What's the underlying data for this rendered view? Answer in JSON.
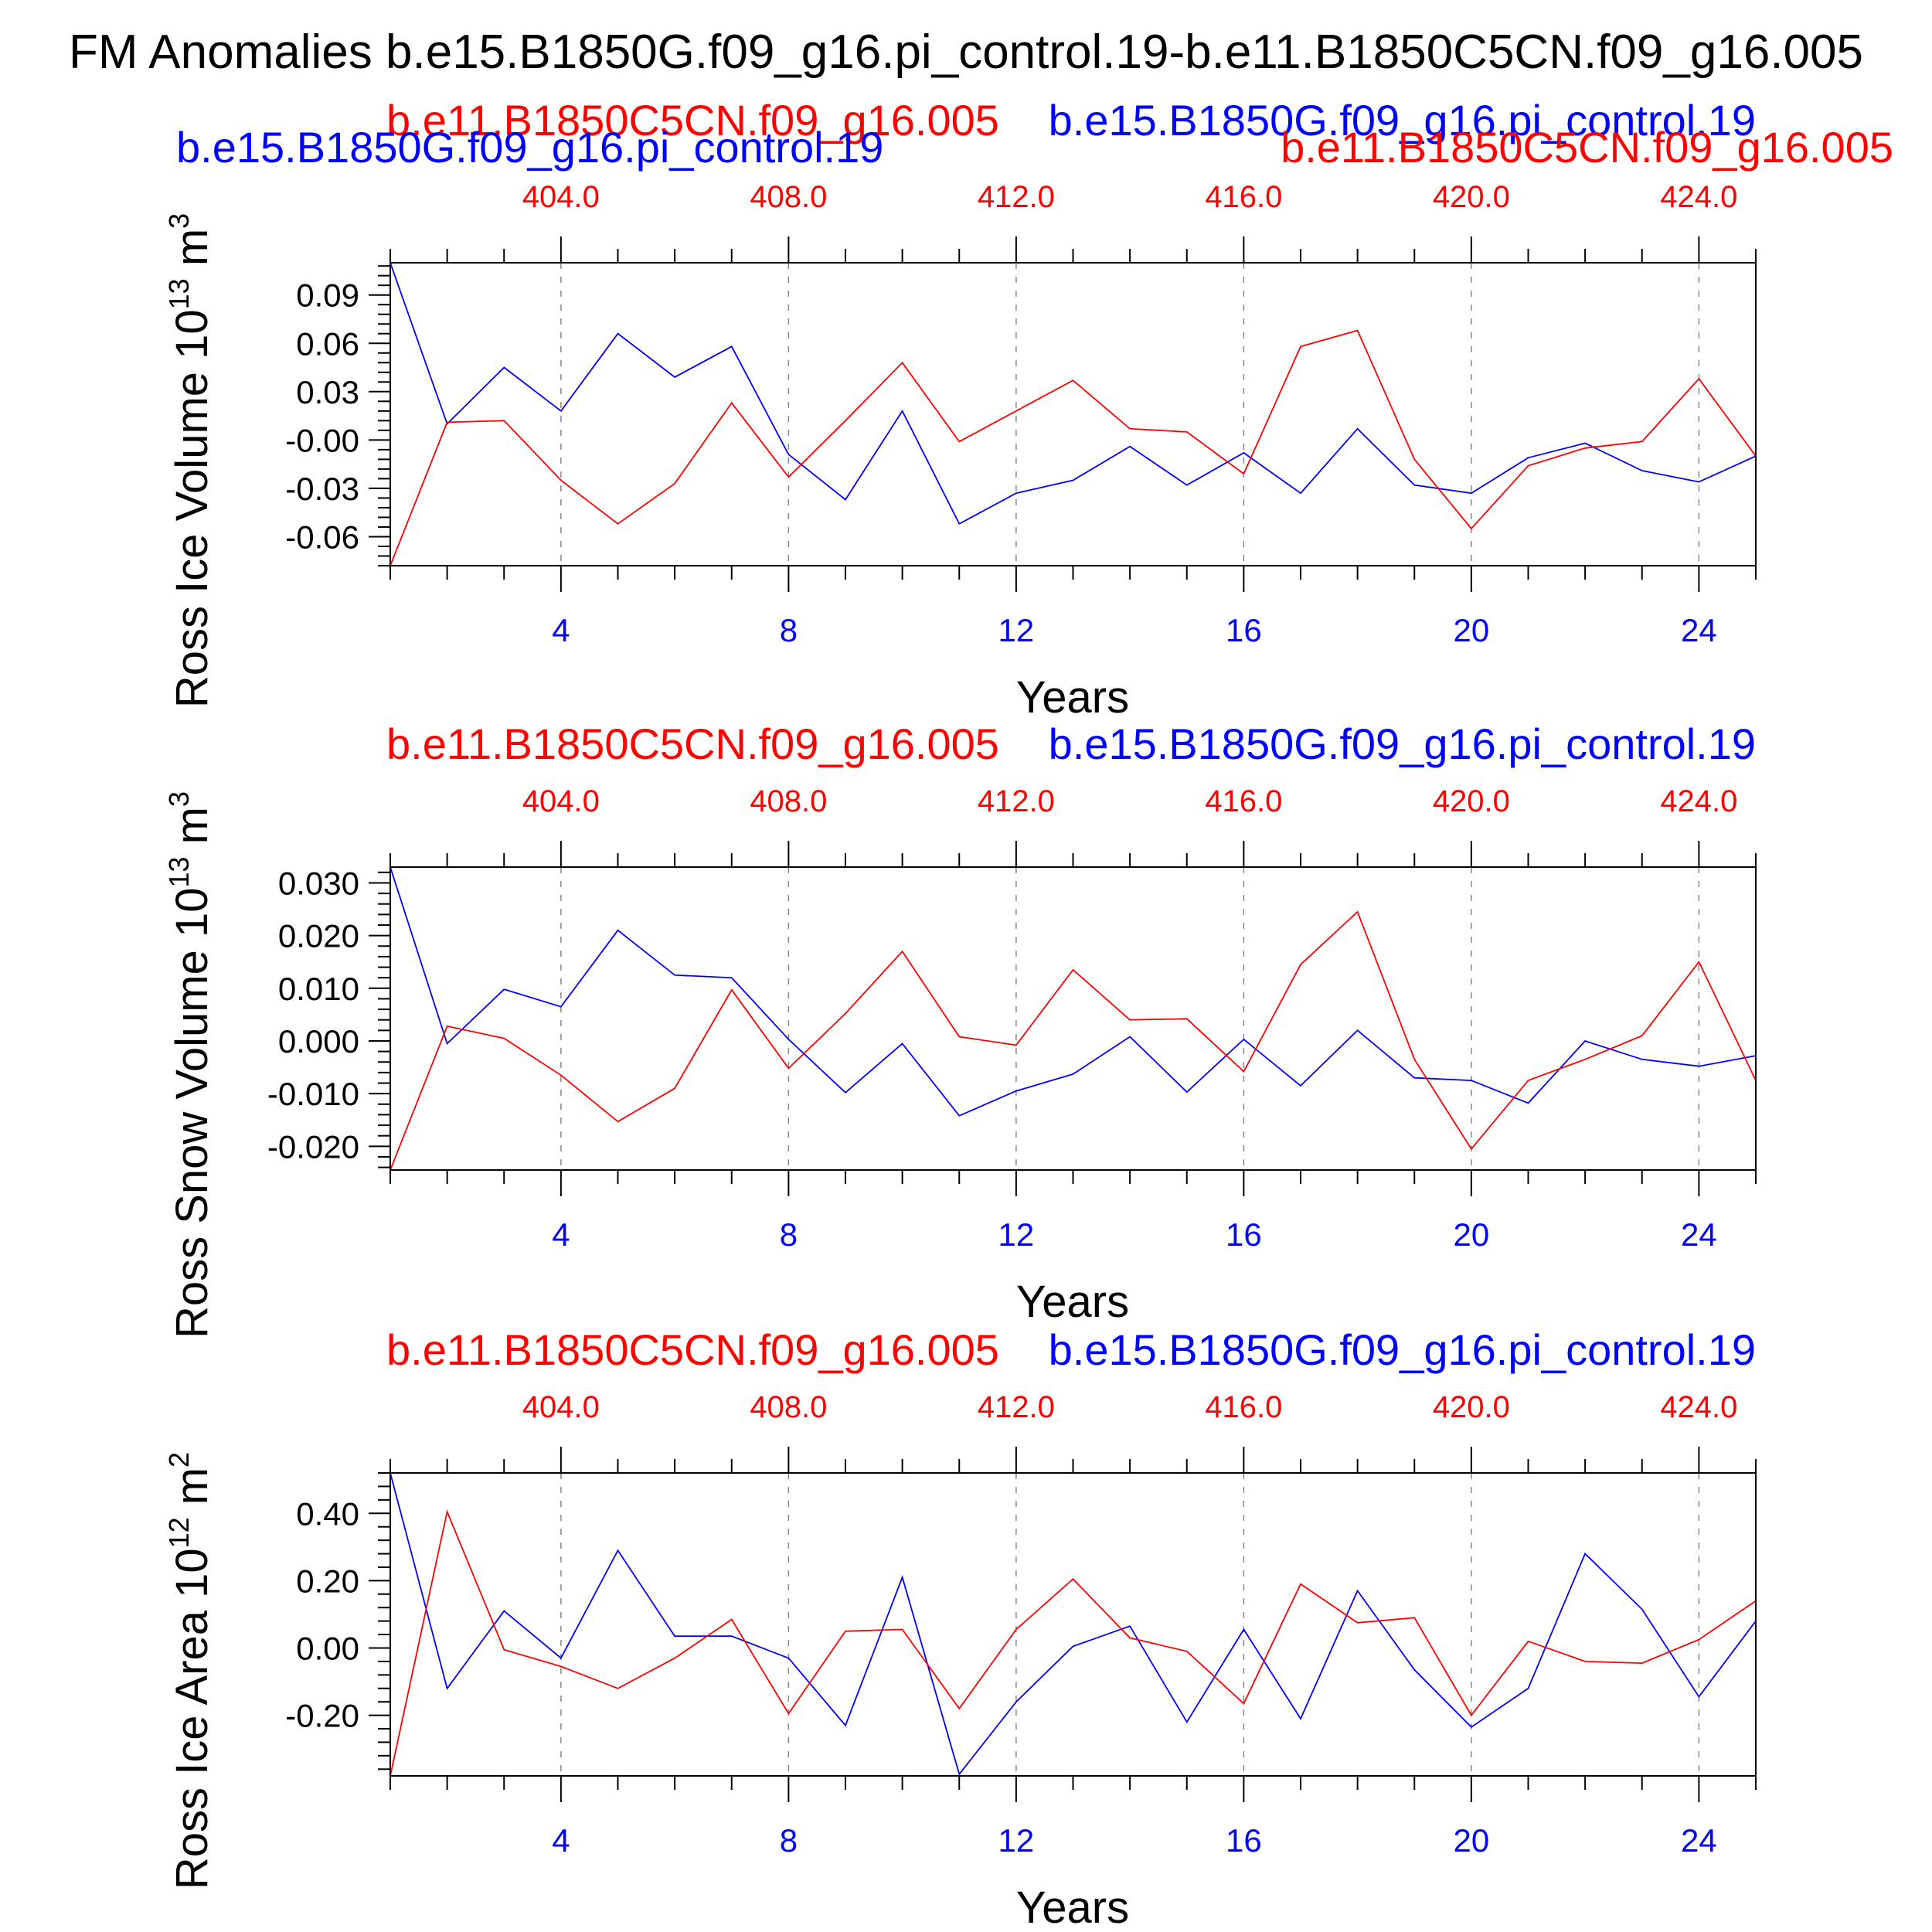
{
  "figure": {
    "title": "FM Anomalies b.e15.B1850G.f09_g16.pi_control.19-b.e11.B1850C5CN.f09_g16.005",
    "xlabel": "Years",
    "series_names": {
      "blue": "b.e15.B1850G.f09_g16.pi_control.19",
      "red": "b.e11.B1850C5CN.f09_g16.005"
    },
    "colors": {
      "blue": "#0000ff",
      "red": "#ff0000",
      "axis": "#000000",
      "grid": "#888888"
    }
  },
  "chart_data": [
    {
      "type": "line",
      "ylabel": "Ross Ice Volume 10",
      "ylabel_exp": "13",
      "ylabel_unit": " m",
      "ylabel_unit_exp": "3",
      "xlim": [
        1,
        25
      ],
      "ylim": [
        -0.078,
        0.11
      ],
      "y_ticks": [
        0.09,
        0.06,
        0.03,
        0.0,
        -0.03,
        -0.06
      ],
      "y_tick_labels": [
        "0.09",
        "0.06",
        "0.03",
        "-0.00",
        "-0.03",
        "-0.06"
      ],
      "x_ticks_bottom": [
        4,
        8,
        12,
        16,
        20,
        24
      ],
      "x_tick_labels_bottom": [
        "4",
        "8",
        "12",
        "16",
        "20",
        "24"
      ],
      "x_tick_labels_top": [
        "404.0",
        "408.0",
        "412.0",
        "416.0",
        "420.0",
        "424.0"
      ],
      "x": [
        1,
        2,
        3,
        4,
        5,
        6,
        7,
        8,
        9,
        10,
        11,
        12,
        13,
        14,
        15,
        16,
        17,
        18,
        19,
        20,
        21,
        22,
        23,
        24,
        25
      ],
      "series": [
        {
          "name": "b.e15.B1850G.f09_g16.pi_control.19",
          "color": "blue",
          "values": [
            0.11,
            0.01,
            0.045,
            0.018,
            0.066,
            0.039,
            0.058,
            -0.009,
            -0.037,
            0.018,
            -0.052,
            -0.033,
            -0.025,
            -0.004,
            -0.028,
            -0.008,
            -0.033,
            0.007,
            -0.028,
            -0.033,
            -0.011,
            -0.002,
            -0.019,
            -0.026,
            -0.01
          ]
        },
        {
          "name": "b.e11.B1850C5CN.f09_g16.005",
          "color": "red",
          "values": [
            -0.078,
            0.011,
            0.012,
            -0.025,
            -0.052,
            -0.027,
            0.023,
            -0.023,
            0.012,
            0.048,
            -0.001,
            0.018,
            0.037,
            0.007,
            0.005,
            -0.021,
            0.058,
            0.068,
            -0.012,
            -0.055,
            -0.016,
            -0.005,
            -0.001,
            0.038,
            -0.01
          ]
        }
      ]
    },
    {
      "type": "line",
      "ylabel": "Ross Snow Volume 10",
      "ylabel_exp": "13",
      "ylabel_unit": " m",
      "ylabel_unit_exp": "3",
      "xlim": [
        1,
        25
      ],
      "ylim": [
        -0.0245,
        0.033
      ],
      "y_ticks": [
        0.03,
        0.02,
        0.01,
        0.0,
        -0.01,
        -0.02
      ],
      "y_tick_labels": [
        "0.030",
        "0.020",
        "0.010",
        "0.000",
        "-0.010",
        "-0.020"
      ],
      "x_ticks_bottom": [
        4,
        8,
        12,
        16,
        20,
        24
      ],
      "x_tick_labels_bottom": [
        "4",
        "8",
        "12",
        "16",
        "20",
        "24"
      ],
      "x_tick_labels_top": [
        "404.0",
        "408.0",
        "412.0",
        "416.0",
        "420.0",
        "424.0"
      ],
      "x": [
        1,
        2,
        3,
        4,
        5,
        6,
        7,
        8,
        9,
        10,
        11,
        12,
        13,
        14,
        15,
        16,
        17,
        18,
        19,
        20,
        21,
        22,
        23,
        24,
        25
      ],
      "series": [
        {
          "name": "b.e15.B1850G.f09_g16.pi_control.19",
          "color": "blue",
          "values": [
            0.033,
            -0.0005,
            0.0098,
            0.0065,
            0.021,
            0.0125,
            0.012,
            0.0003,
            -0.0098,
            -0.0005,
            -0.0142,
            -0.0095,
            -0.0063,
            0.0008,
            -0.0097,
            0.0003,
            -0.0085,
            0.002,
            -0.007,
            -0.0075,
            -0.0118,
            0.0,
            -0.0035,
            -0.0048,
            -0.0028
          ]
        },
        {
          "name": "b.e11.B1850C5CN.f09_g16.005",
          "color": "red",
          "values": [
            -0.0245,
            0.0028,
            0.0005,
            -0.0065,
            -0.0153,
            -0.009,
            0.0097,
            -0.0052,
            0.0052,
            0.017,
            0.0008,
            -0.0008,
            0.0135,
            0.004,
            0.0042,
            -0.0058,
            0.0145,
            0.0245,
            -0.0035,
            -0.0205,
            -0.0075,
            -0.0035,
            0.001,
            0.015,
            -0.0075
          ]
        }
      ]
    },
    {
      "type": "line",
      "ylabel": "Ross Ice Area 10",
      "ylabel_exp": "12",
      "ylabel_unit": " m",
      "ylabel_unit_exp": "2",
      "xlim": [
        1,
        25
      ],
      "ylim": [
        -0.38,
        0.52
      ],
      "y_ticks": [
        0.4,
        0.2,
        0.0,
        -0.2
      ],
      "y_tick_labels": [
        "0.40",
        "0.20",
        "0.00",
        "-0.20"
      ],
      "x_ticks_bottom": [
        4,
        8,
        12,
        16,
        20,
        24
      ],
      "x_tick_labels_bottom": [
        "4",
        "8",
        "12",
        "16",
        "20",
        "24"
      ],
      "x_tick_labels_top": [
        "404.0",
        "408.0",
        "412.0",
        "416.0",
        "420.0",
        "424.0"
      ],
      "x": [
        1,
        2,
        3,
        4,
        5,
        6,
        7,
        8,
        9,
        10,
        11,
        12,
        13,
        14,
        15,
        16,
        17,
        18,
        19,
        20,
        21,
        22,
        23,
        24,
        25
      ],
      "series": [
        {
          "name": "b.e15.B1850G.f09_g16.pi_control.19",
          "color": "blue",
          "values": [
            0.52,
            -0.12,
            0.11,
            -0.03,
            0.29,
            0.035,
            0.035,
            -0.03,
            -0.23,
            0.21,
            -0.375,
            -0.16,
            0.005,
            0.065,
            -0.22,
            0.055,
            -0.21,
            0.17,
            -0.065,
            -0.235,
            -0.12,
            0.28,
            0.115,
            -0.145,
            0.08
          ]
        },
        {
          "name": "b.e11.B1850C5CN.f09_g16.005",
          "color": "red",
          "values": [
            -0.38,
            0.405,
            -0.005,
            -0.055,
            -0.12,
            -0.03,
            0.085,
            -0.195,
            0.05,
            0.055,
            -0.18,
            0.055,
            0.205,
            0.03,
            -0.01,
            -0.165,
            0.19,
            0.075,
            0.09,
            -0.2,
            0.02,
            -0.04,
            -0.045,
            0.025,
            0.14
          ]
        }
      ]
    }
  ]
}
